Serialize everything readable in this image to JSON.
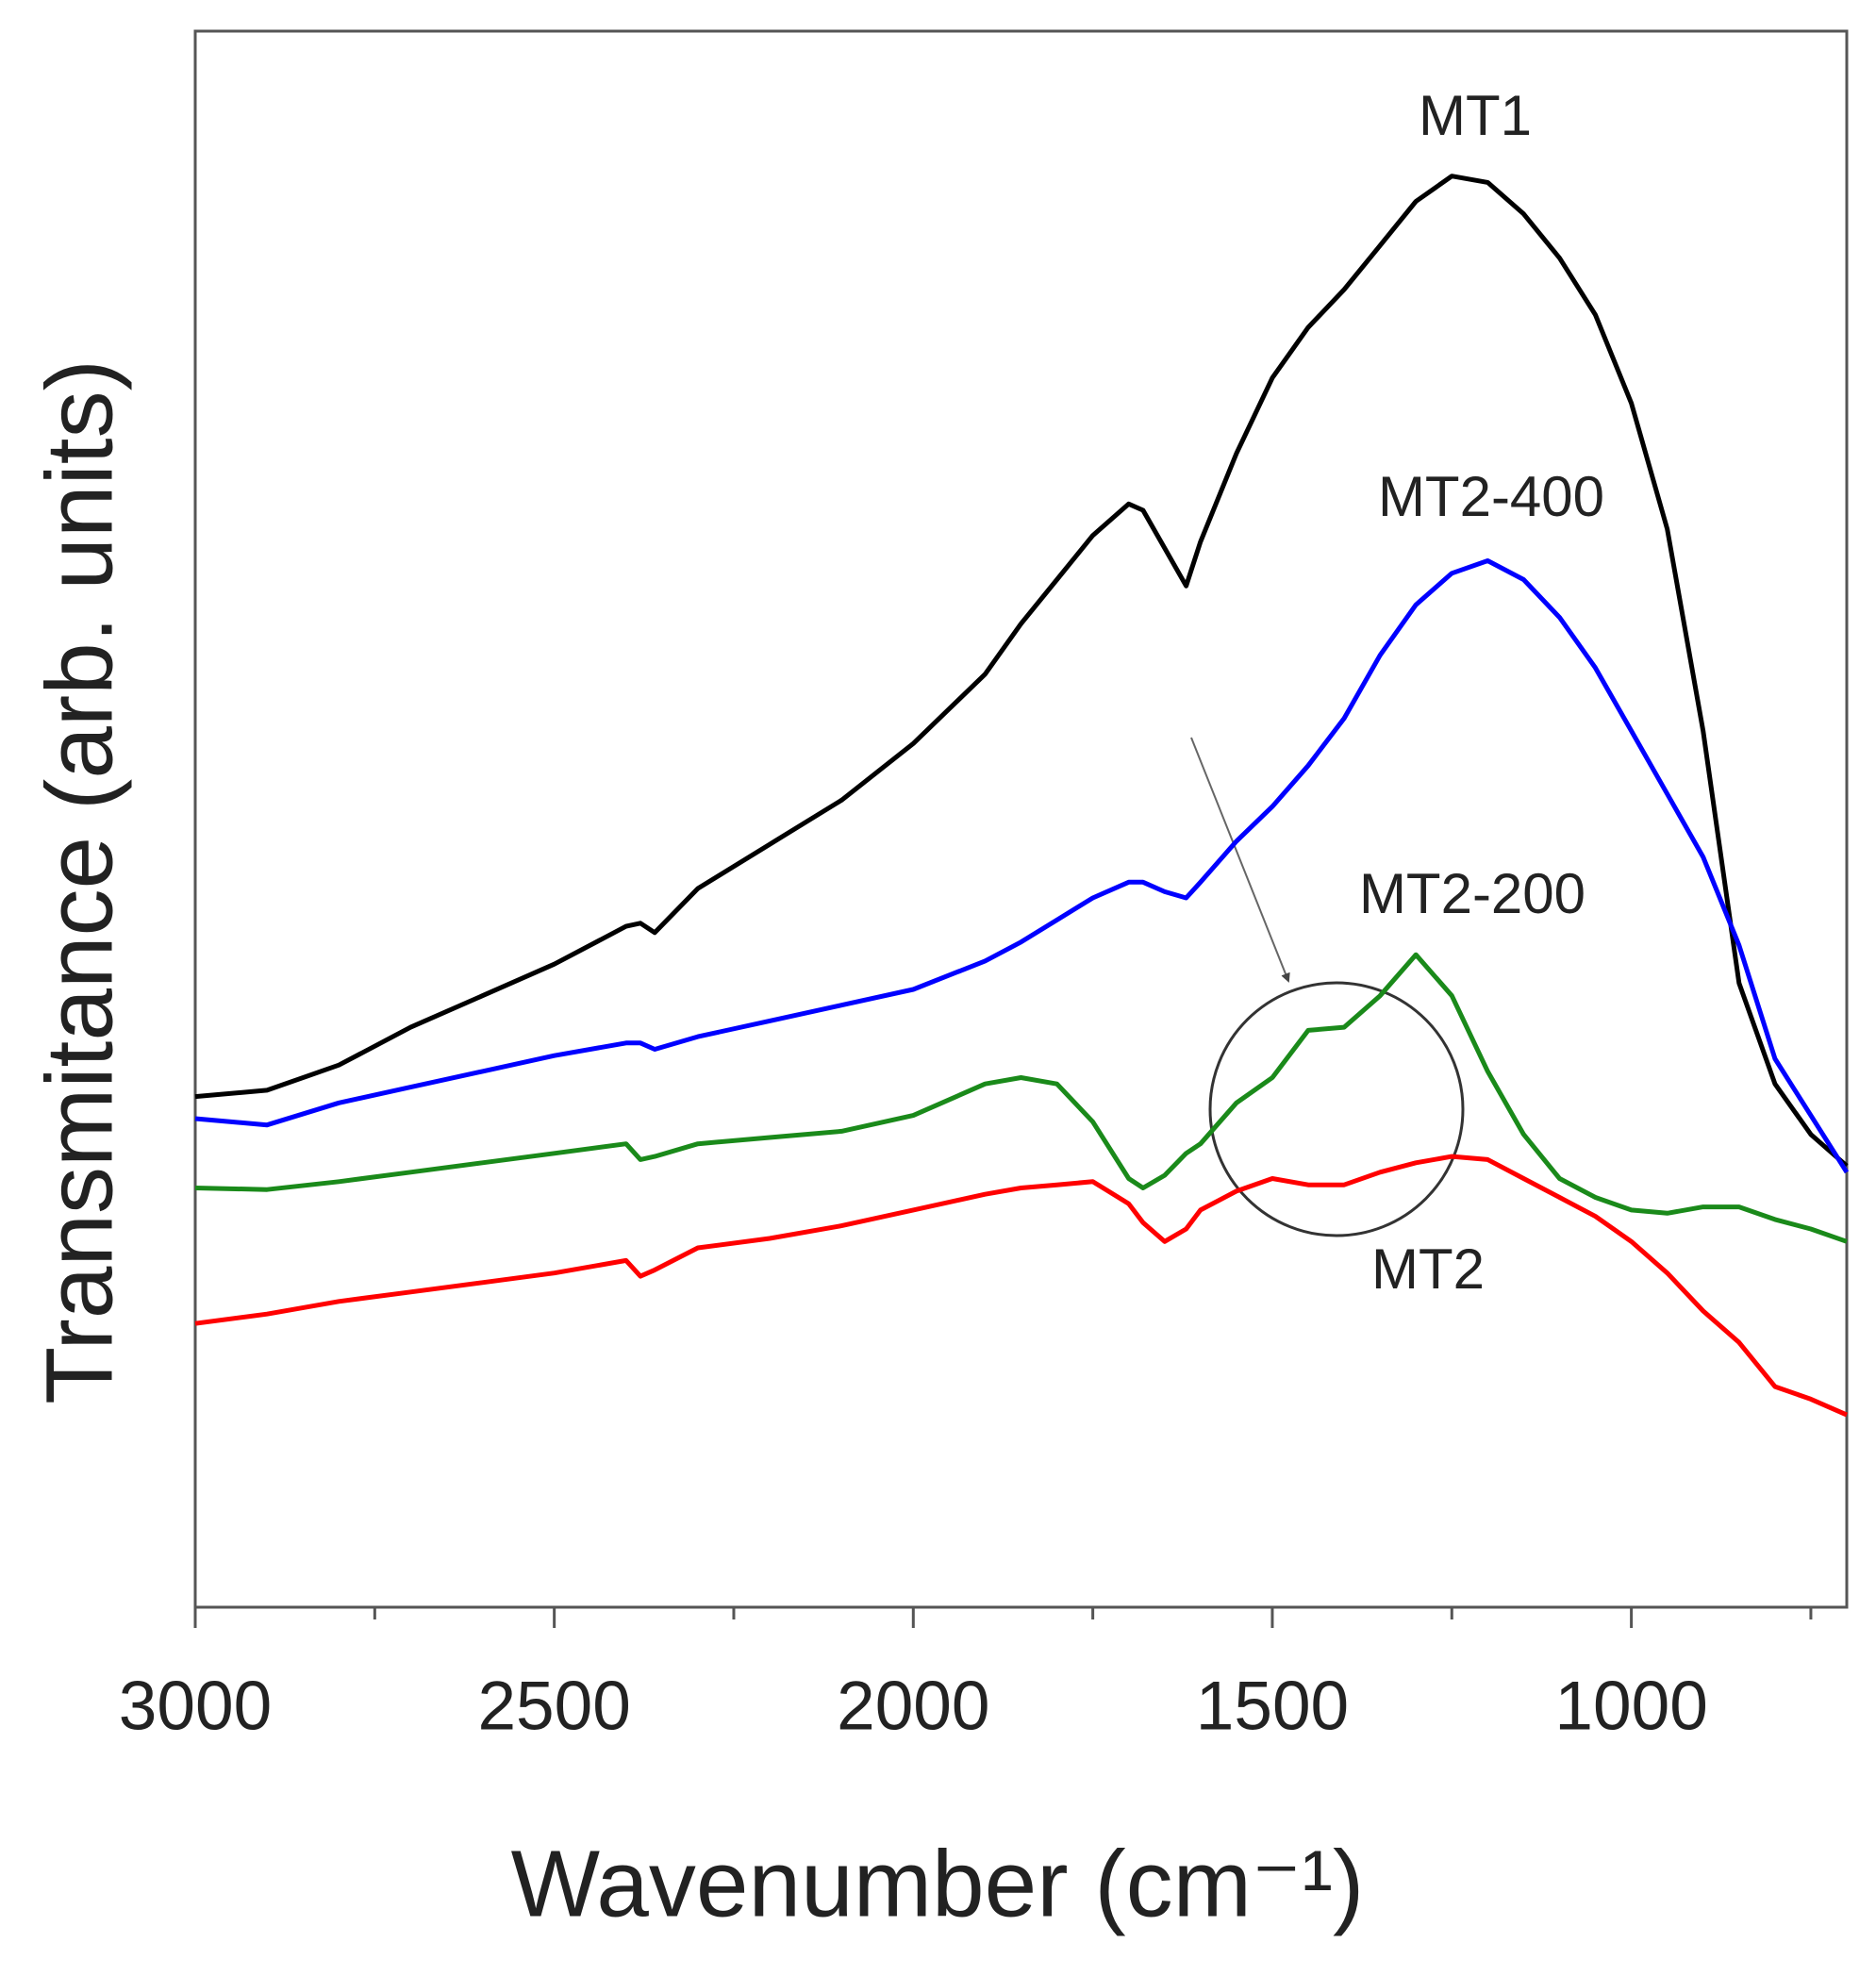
{
  "chart_data": {
    "type": "line",
    "x_label": "Wavenumber (cm⁻¹)",
    "y_label": "Transmitance (arb. units)",
    "xlim": [
      3000,
      700
    ],
    "xticks": [
      3000,
      2500,
      2000,
      1500,
      1000
    ],
    "xminorticks": [
      2750,
      2250,
      1750,
      1250,
      750
    ],
    "ylim": [
      0,
      100
    ],
    "x": [
      3000,
      2900,
      2800,
      2700,
      2600,
      2500,
      2400,
      2380,
      2360,
      2300,
      2200,
      2100,
      2000,
      1900,
      1850,
      1800,
      1750,
      1700,
      1680,
      1650,
      1620,
      1600,
      1550,
      1500,
      1450,
      1400,
      1350,
      1300,
      1250,
      1200,
      1150,
      1100,
      1050,
      1000,
      950,
      900,
      850,
      800,
      750,
      700
    ],
    "series": [
      {
        "name": "MT1",
        "color": "#000000",
        "values": [
          32.4,
          32.8,
          34.4,
          36.8,
          38.8,
          40.8,
          43.2,
          43.4,
          42.8,
          45.6,
          48.4,
          51.2,
          54.8,
          59.2,
          62.4,
          65.2,
          68,
          70,
          69.6,
          67.2,
          64.8,
          67.6,
          73.2,
          78,
          81.2,
          83.6,
          86.4,
          89.2,
          90.8,
          90.4,
          88.4,
          85.6,
          82,
          76.4,
          68.4,
          55.6,
          39.6,
          33.2,
          30,
          28
        ]
      },
      {
        "name": "MT2-400",
        "color": "#0000ff",
        "values": [
          31,
          30.6,
          32,
          33,
          34,
          35,
          35.8,
          35.8,
          35.4,
          36.2,
          37.2,
          38.2,
          39.2,
          41,
          42.2,
          43.6,
          45,
          46,
          46,
          45.4,
          45,
          46,
          48.6,
          50.8,
          53.4,
          56.4,
          60.4,
          63.6,
          65.6,
          66.4,
          65.2,
          62.8,
          59.6,
          55.6,
          51.6,
          47.6,
          42,
          34.8,
          31.2,
          27.6
        ]
      },
      {
        "name": "MT2-200",
        "color": "#1a8a1a",
        "values": [
          26.6,
          26.5,
          27,
          27.6,
          28.2,
          28.8,
          29.4,
          28.4,
          28.6,
          29.4,
          29.8,
          30.2,
          31.2,
          33.2,
          33.6,
          33.2,
          30.8,
          27.2,
          26.6,
          27.4,
          28.8,
          29.4,
          32,
          33.6,
          36.6,
          36.8,
          38.8,
          41.4,
          38.8,
          34,
          30,
          27.2,
          26,
          25.2,
          25,
          25.4,
          25.4,
          24.6,
          24,
          23.2
        ]
      },
      {
        "name": "MT2",
        "color": "#ff0000",
        "values": [
          18,
          18.6,
          19.4,
          20,
          20.6,
          21.2,
          22,
          21,
          21.4,
          22.8,
          23.4,
          24.2,
          25.2,
          26.2,
          26.6,
          26.8,
          27,
          25.6,
          24.4,
          23.2,
          24,
          25.2,
          26.4,
          27.2,
          26.8,
          26.8,
          27.6,
          28.2,
          28.6,
          28.4,
          27.2,
          26,
          24.8,
          23.2,
          21.2,
          18.8,
          16.8,
          14,
          13.2,
          12.2
        ]
      }
    ]
  }
}
